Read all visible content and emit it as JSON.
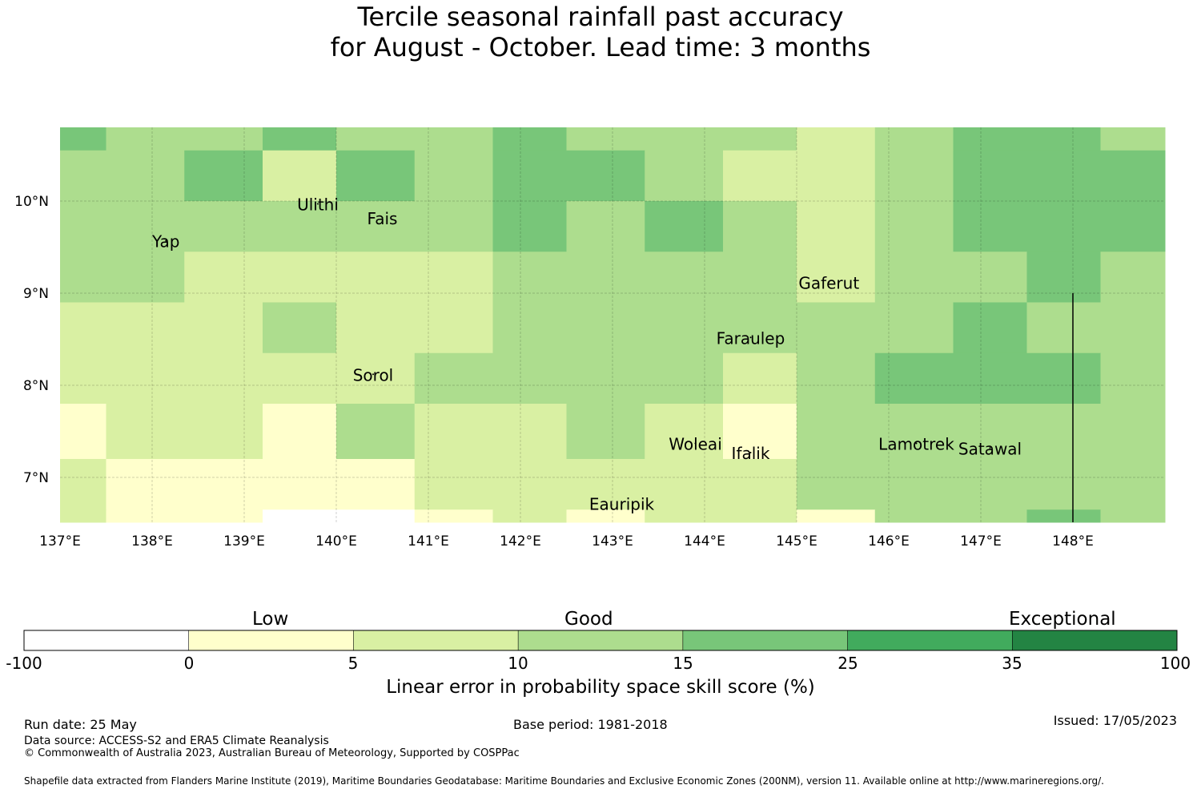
{
  "title": {
    "line1": "Tercile seasonal rainfall past accuracy",
    "line2": "for August - October. Lead time: 3 months"
  },
  "map": {
    "lon_range": [
      137.0,
      149.0
    ],
    "lat_range": [
      6.5,
      10.8
    ],
    "x_ticks": [
      {
        "lon": 137,
        "label": "137°E"
      },
      {
        "lon": 138,
        "label": "138°E"
      },
      {
        "lon": 139,
        "label": "139°E"
      },
      {
        "lon": 140,
        "label": "140°E"
      },
      {
        "lon": 141,
        "label": "141°E"
      },
      {
        "lon": 142,
        "label": "142°E"
      },
      {
        "lon": 143,
        "label": "143°E"
      },
      {
        "lon": 144,
        "label": "144°E"
      },
      {
        "lon": 145,
        "label": "145°E"
      },
      {
        "lon": 146,
        "label": "146°E"
      },
      {
        "lon": 147,
        "label": "147°E"
      },
      {
        "lon": 148,
        "label": "148°E"
      }
    ],
    "y_ticks": [
      {
        "lat": 10,
        "label": "10°N"
      },
      {
        "lat": 9,
        "label": "9°N"
      },
      {
        "lat": 8,
        "label": "8°N"
      },
      {
        "lat": 7,
        "label": "7°N"
      }
    ],
    "grid_lines": true,
    "places": [
      {
        "name": "Ulithi",
        "lon": 139.8,
        "lat": 9.9
      },
      {
        "name": "Fais",
        "lon": 140.5,
        "lat": 9.75
      },
      {
        "name": "Yap",
        "lon": 138.15,
        "lat": 9.5
      },
      {
        "name": "Gaferut",
        "lon": 145.35,
        "lat": 9.05
      },
      {
        "name": "Faraulep",
        "lon": 144.5,
        "lat": 8.45
      },
      {
        "name": "Sorol",
        "lon": 140.4,
        "lat": 8.05
      },
      {
        "name": "Lamotrek",
        "lon": 146.3,
        "lat": 7.3
      },
      {
        "name": "Satawal",
        "lon": 147.1,
        "lat": 7.25
      },
      {
        "name": "Woleai",
        "lon": 143.9,
        "lat": 7.3
      },
      {
        "name": "Ifalik",
        "lon": 144.5,
        "lat": 7.2
      },
      {
        "name": "Eauripik",
        "lon": 143.1,
        "lat": 6.65
      }
    ],
    "boundary_line": {
      "lon": 148.0,
      "lat_from": 9.0,
      "lat_to": 6.5
    }
  },
  "chart_data": {
    "type": "heatmap",
    "legend_levels": [
      "white",
      "c0",
      "c1",
      "c2",
      "c3"
    ],
    "grid_rows": [
      {
        "lat_top": 10.8,
        "lat_bottom": 10.55,
        "cells": [
          [
            137.0,
            137.5,
            3
          ],
          [
            137.5,
            139.2,
            2
          ],
          [
            139.2,
            140.0,
            3
          ],
          [
            140.0,
            141.7,
            2
          ],
          [
            141.7,
            142.5,
            3
          ],
          [
            142.5,
            145.0,
            2
          ],
          [
            145.0,
            145.85,
            1
          ],
          [
            145.85,
            146.7,
            2
          ],
          [
            146.7,
            148.3,
            3
          ],
          [
            148.3,
            149.0,
            2
          ]
        ]
      },
      {
        "lat_top": 10.55,
        "lat_bottom": 10.0,
        "cells": [
          [
            137.0,
            138.35,
            2
          ],
          [
            138.35,
            139.2,
            3
          ],
          [
            139.2,
            140.0,
            1
          ],
          [
            140.0,
            140.85,
            3
          ],
          [
            140.85,
            141.7,
            2
          ],
          [
            141.7,
            143.35,
            3
          ],
          [
            143.35,
            144.2,
            2
          ],
          [
            144.2,
            145.85,
            1
          ],
          [
            145.85,
            146.7,
            2
          ],
          [
            146.7,
            149.0,
            3
          ]
        ]
      },
      {
        "lat_top": 10.0,
        "lat_bottom": 9.45,
        "cells": [
          [
            137.0,
            141.7,
            2
          ],
          [
            141.7,
            142.5,
            3
          ],
          [
            142.5,
            143.35,
            2
          ],
          [
            143.35,
            144.2,
            3
          ],
          [
            144.2,
            145.0,
            2
          ],
          [
            145.0,
            145.85,
            1
          ],
          [
            145.85,
            146.7,
            2
          ],
          [
            146.7,
            149.0,
            3
          ]
        ]
      },
      {
        "lat_top": 9.45,
        "lat_bottom": 8.9,
        "cells": [
          [
            137.0,
            138.35,
            2
          ],
          [
            138.35,
            141.7,
            1
          ],
          [
            141.7,
            145.0,
            2
          ],
          [
            145.0,
            145.85,
            1
          ],
          [
            145.85,
            147.5,
            2
          ],
          [
            147.5,
            148.3,
            3
          ],
          [
            148.3,
            149.0,
            2
          ]
        ]
      },
      {
        "lat_top": 8.9,
        "lat_bottom": 8.35,
        "cells": [
          [
            137.0,
            139.2,
            1
          ],
          [
            139.2,
            140.0,
            2
          ],
          [
            140.0,
            141.7,
            1
          ],
          [
            141.7,
            146.7,
            2
          ],
          [
            146.7,
            147.5,
            3
          ],
          [
            147.5,
            149.0,
            2
          ]
        ]
      },
      {
        "lat_top": 8.35,
        "lat_bottom": 7.8,
        "cells": [
          [
            137.0,
            140.85,
            1
          ],
          [
            140.85,
            144.2,
            2
          ],
          [
            144.2,
            145.0,
            1
          ],
          [
            145.0,
            145.85,
            2
          ],
          [
            145.85,
            148.3,
            3
          ],
          [
            148.3,
            149.0,
            2
          ]
        ]
      },
      {
        "lat_top": 7.8,
        "lat_bottom": 7.2,
        "cells": [
          [
            137.0,
            137.5,
            0
          ],
          [
            137.5,
            139.2,
            1
          ],
          [
            139.2,
            140.0,
            0
          ],
          [
            140.0,
            140.85,
            2
          ],
          [
            140.85,
            142.5,
            1
          ],
          [
            142.5,
            143.35,
            2
          ],
          [
            143.35,
            144.2,
            1
          ],
          [
            144.2,
            145.0,
            0
          ],
          [
            145.0,
            149.0,
            2
          ]
        ]
      },
      {
        "lat_top": 7.2,
        "lat_bottom": 6.65,
        "cells": [
          [
            137.0,
            137.5,
            1
          ],
          [
            137.5,
            140.85,
            0
          ],
          [
            140.85,
            145.0,
            1
          ],
          [
            145.0,
            149.0,
            2
          ]
        ]
      },
      {
        "lat_top": 6.65,
        "lat_bottom": 6.5,
        "cells": [
          [
            137.0,
            137.5,
            1
          ],
          [
            137.5,
            139.2,
            0
          ],
          [
            139.2,
            140.85,
            -1
          ],
          [
            140.85,
            141.7,
            0
          ],
          [
            141.7,
            142.5,
            1
          ],
          [
            142.5,
            143.35,
            0
          ],
          [
            143.35,
            145.0,
            1
          ],
          [
            145.0,
            145.85,
            0
          ],
          [
            145.85,
            147.5,
            2
          ],
          [
            147.5,
            148.3,
            3
          ],
          [
            148.3,
            149.0,
            2
          ]
        ]
      }
    ]
  },
  "colorbar": {
    "colors": [
      "#ffffff",
      "#ffffcc",
      "#d9f0a3",
      "#addd8e",
      "#78c679",
      "#41ab5d",
      "#238443"
    ],
    "ticks": [
      "-100",
      "0",
      "5",
      "10",
      "15",
      "25",
      "35",
      "100"
    ],
    "categories": [
      "Low",
      "Good",
      "Exceptional"
    ],
    "label": "Linear error in probability space skill score (%)"
  },
  "footer": {
    "run_date": "Run date: 25 May",
    "base_period": "Base period: 1981-2018",
    "issued": "Issued: 17/05/2023",
    "data_source": "Data source: ACCESS-S2 and ERA5 Climate Reanalysis",
    "copyright": "© Commonwealth of Australia 2023, Australian Bureau of Meteorology, Supported by COSPPac",
    "shapefile": "Shapefile data extracted from Flanders Marine Institute (2019), Maritime Boundaries Geodatabase: Maritime Boundaries and Exclusive Economic Zones (200NM), version 11. Available online at http://www.marineregions.org/."
  }
}
